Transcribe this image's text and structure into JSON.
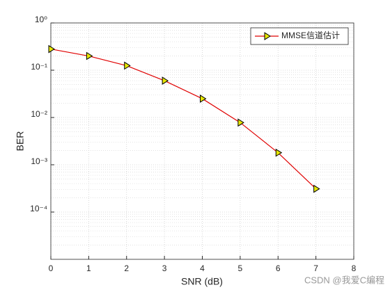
{
  "chart_data": {
    "type": "line",
    "xlabel": "SNR (dB)",
    "ylabel": "BER",
    "x": [
      0,
      1,
      2,
      3,
      4,
      5,
      6,
      7
    ],
    "series": [
      {
        "name": "MMSE信道估计",
        "color": "#e00000",
        "marker_color": "#e6e600",
        "values": [
          0.28,
          0.2,
          0.125,
          0.06,
          0.025,
          0.0078,
          0.0018,
          0.00031
        ]
      }
    ],
    "xlim": [
      0,
      8
    ],
    "xticks": [
      0,
      1,
      2,
      3,
      4,
      5,
      6,
      7,
      8
    ],
    "ylim": [
      1e-05,
      1
    ],
    "log_y": true,
    "yticks": [
      {
        "value": 0.0001,
        "label": "10⁻⁴"
      },
      {
        "value": 0.001,
        "label": "10⁻³"
      },
      {
        "value": 0.01,
        "label": "10⁻²"
      },
      {
        "value": 0.1,
        "label": "10⁻¹"
      },
      {
        "value": 1,
        "label": "10⁰"
      }
    ],
    "grid": true,
    "minor_grid": true,
    "legend": "upper right",
    "watermark": "CSDN @我爱C编程"
  }
}
